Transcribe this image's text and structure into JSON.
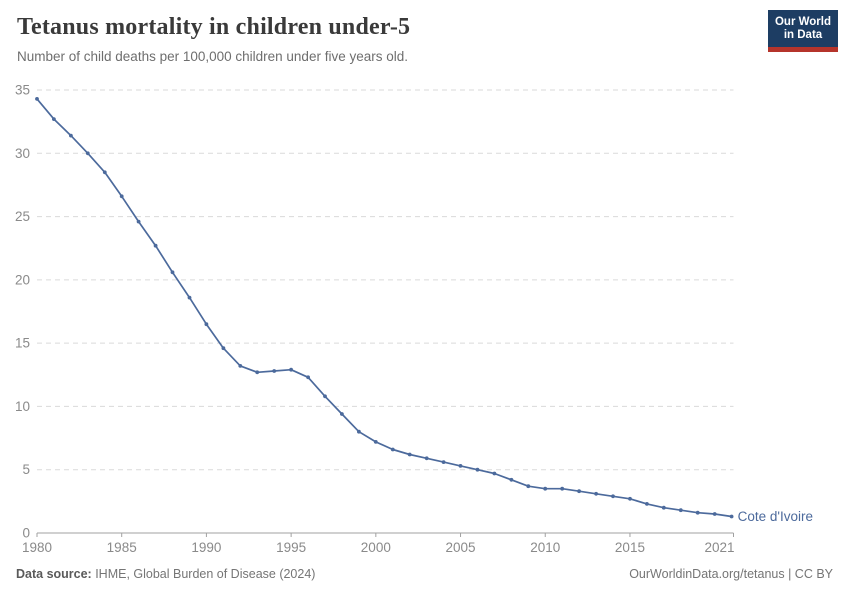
{
  "header": {
    "title": "Tetanus mortality in children under-5",
    "subtitle": "Number of child deaths per 100,000 children under five years old.",
    "logo": {
      "line1": "Our World",
      "line2": "in Data",
      "bg": "#1d3d63",
      "accent": "#b5342b"
    }
  },
  "chart_data": {
    "type": "line",
    "title": "Tetanus mortality in children under-5",
    "xlabel": "",
    "ylabel": "",
    "xlim": [
      1980,
      2021
    ],
    "ylim": [
      0,
      35
    ],
    "x_ticks": [
      1980,
      1985,
      1990,
      1995,
      2000,
      2005,
      2010,
      2015,
      2021
    ],
    "y_ticks": [
      0,
      5,
      10,
      15,
      20,
      25,
      30,
      35
    ],
    "grid": "horizontal-dashed",
    "legend_position": "end-of-line-label",
    "entity_label": "Cote d'Ivoire",
    "series": [
      {
        "name": "Cote d'Ivoire",
        "color": "#4c6a9c",
        "x": [
          1980,
          1981,
          1982,
          1983,
          1984,
          1985,
          1986,
          1987,
          1988,
          1989,
          1990,
          1991,
          1992,
          1993,
          1994,
          1995,
          1996,
          1997,
          1998,
          1999,
          2000,
          2001,
          2002,
          2003,
          2004,
          2005,
          2006,
          2007,
          2008,
          2009,
          2010,
          2011,
          2012,
          2013,
          2014,
          2015,
          2016,
          2017,
          2018,
          2019,
          2020,
          2021
        ],
        "values": [
          34.3,
          32.7,
          31.4,
          30.0,
          28.5,
          26.6,
          24.6,
          22.7,
          20.6,
          18.6,
          16.5,
          14.6,
          13.2,
          12.7,
          12.8,
          12.9,
          12.3,
          10.8,
          9.4,
          8.0,
          7.2,
          6.6,
          6.2,
          5.9,
          5.6,
          5.3,
          5.0,
          4.7,
          4.2,
          3.7,
          3.5,
          3.5,
          3.3,
          3.1,
          2.9,
          2.7,
          2.3,
          2.0,
          1.8,
          1.6,
          1.5,
          1.3
        ]
      }
    ]
  },
  "colors": {
    "line": "#4c6a9c",
    "grid": "#dadada",
    "axis": "#a1a1a1",
    "tick_text": "#8a8a8a",
    "title": "#3a3a3a",
    "subtitle": "#6e6e6e"
  },
  "footer": {
    "source_label": "Data source:",
    "source_text": " IHME, Global Burden of Disease (2024)",
    "right_text": "OurWorldinData.org/tetanus | CC BY"
  }
}
